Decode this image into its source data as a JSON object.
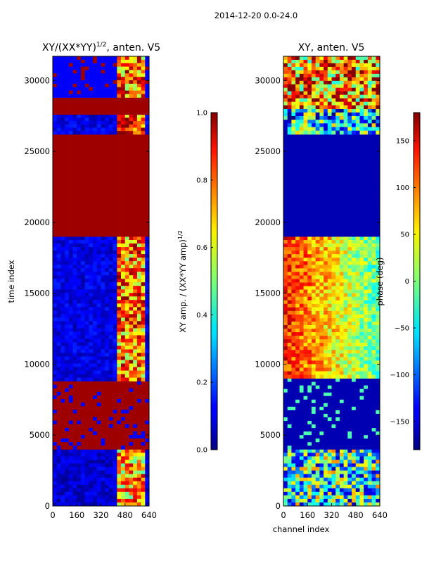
{
  "suptitle": "2014-12-20 0.0-24.0",
  "chart_data": [
    {
      "type": "heatmap",
      "title_text": "XY/(XX*YY)",
      "title_exponent": "1/2",
      "title_suffix": ", anten. V5",
      "xlabel": "",
      "ylabel": "time index",
      "xlim": [
        0,
        640
      ],
      "ylim": [
        0,
        31700
      ],
      "x_ticks": [
        0,
        160,
        320,
        480,
        640
      ],
      "x_tick_labels": [
        "0",
        "160",
        "320",
        "480",
        "640"
      ],
      "y_ticks": [
        0,
        5000,
        10000,
        15000,
        20000,
        25000,
        30000
      ],
      "y_tick_labels": [
        "0",
        "5000",
        "10000",
        "15000",
        "20000",
        "25000",
        "30000"
      ],
      "colormap": "jet",
      "colorbar": {
        "label_text": "XY amp. / (XX*YY amp)",
        "label_exponent": "1/2",
        "range": [
          0,
          1
        ],
        "ticks": [
          0,
          0.2,
          0.4,
          0.6,
          0.8,
          1.0
        ],
        "tick_labels": [
          "0.0",
          "0.2",
          "0.4",
          "0.6",
          "0.8",
          "1.0"
        ]
      },
      "regions": [
        {
          "y0": 0,
          "y1": 4000,
          "base_value": 0.08,
          "texture": "speckle",
          "high_channels": [
            430,
            600
          ],
          "high_value": 0.7
        },
        {
          "y0": 4000,
          "y1": 8800,
          "base_value": 0.97,
          "texture": "lines",
          "low_line_value": 0.12
        },
        {
          "y0": 8800,
          "y1": 19000,
          "base_value": 0.1,
          "texture": "speckle",
          "high_channels": [
            420,
            600
          ],
          "high_value": 0.75
        },
        {
          "y0": 19000,
          "y1": 26200,
          "base_value": 0.97,
          "texture": "flat"
        },
        {
          "y0": 26200,
          "y1": 27600,
          "base_value": 0.1,
          "texture": "speckle",
          "high_channels": [
            420,
            600
          ],
          "high_value": 0.8
        },
        {
          "y0": 27600,
          "y1": 28800,
          "base_value": 0.97,
          "texture": "flat"
        },
        {
          "y0": 28800,
          "y1": 31700,
          "base_value": 0.12,
          "texture": "lines",
          "high_channels": [
            420,
            600
          ],
          "high_value": 0.75
        }
      ]
    },
    {
      "type": "heatmap",
      "title": "XY, anten. V5",
      "xlabel": "channel index",
      "ylabel": "",
      "xlim": [
        0,
        640
      ],
      "ylim": [
        0,
        31700
      ],
      "x_ticks": [
        0,
        160,
        320,
        480,
        640
      ],
      "x_tick_labels": [
        "0",
        "160",
        "320",
        "480",
        "640"
      ],
      "y_ticks": [
        0,
        5000,
        10000,
        15000,
        20000,
        25000,
        30000
      ],
      "y_tick_labels": [
        "0",
        "5000",
        "10000",
        "15000",
        "20000",
        "25000",
        "30000"
      ],
      "colormap": "jet",
      "colorbar": {
        "label": "phase (deg)",
        "range": [
          -180,
          180
        ],
        "ticks": [
          -150,
          -100,
          -50,
          0,
          50,
          100,
          150
        ],
        "tick_labels": [
          "−150",
          "−100",
          "−50",
          "0",
          "50",
          "100",
          "150"
        ]
      },
      "regions": [
        {
          "y0": 0,
          "y1": 4000,
          "base_value": 0.4,
          "texture": "noise"
        },
        {
          "y0": 4000,
          "y1": 9000,
          "base_value": 0.05,
          "texture": "lines",
          "line_value": 0.45
        },
        {
          "y0": 9000,
          "y1": 19000,
          "base_value": 0.85,
          "texture": "gradient",
          "right_value": 0.45
        },
        {
          "y0": 19000,
          "y1": 26200,
          "base_value": 0.05,
          "texture": "flat"
        },
        {
          "y0": 26200,
          "y1": 28000,
          "base_value": 0.35,
          "texture": "noise"
        },
        {
          "y0": 28000,
          "y1": 31700,
          "base_value": 0.75,
          "texture": "noise"
        }
      ]
    }
  ]
}
